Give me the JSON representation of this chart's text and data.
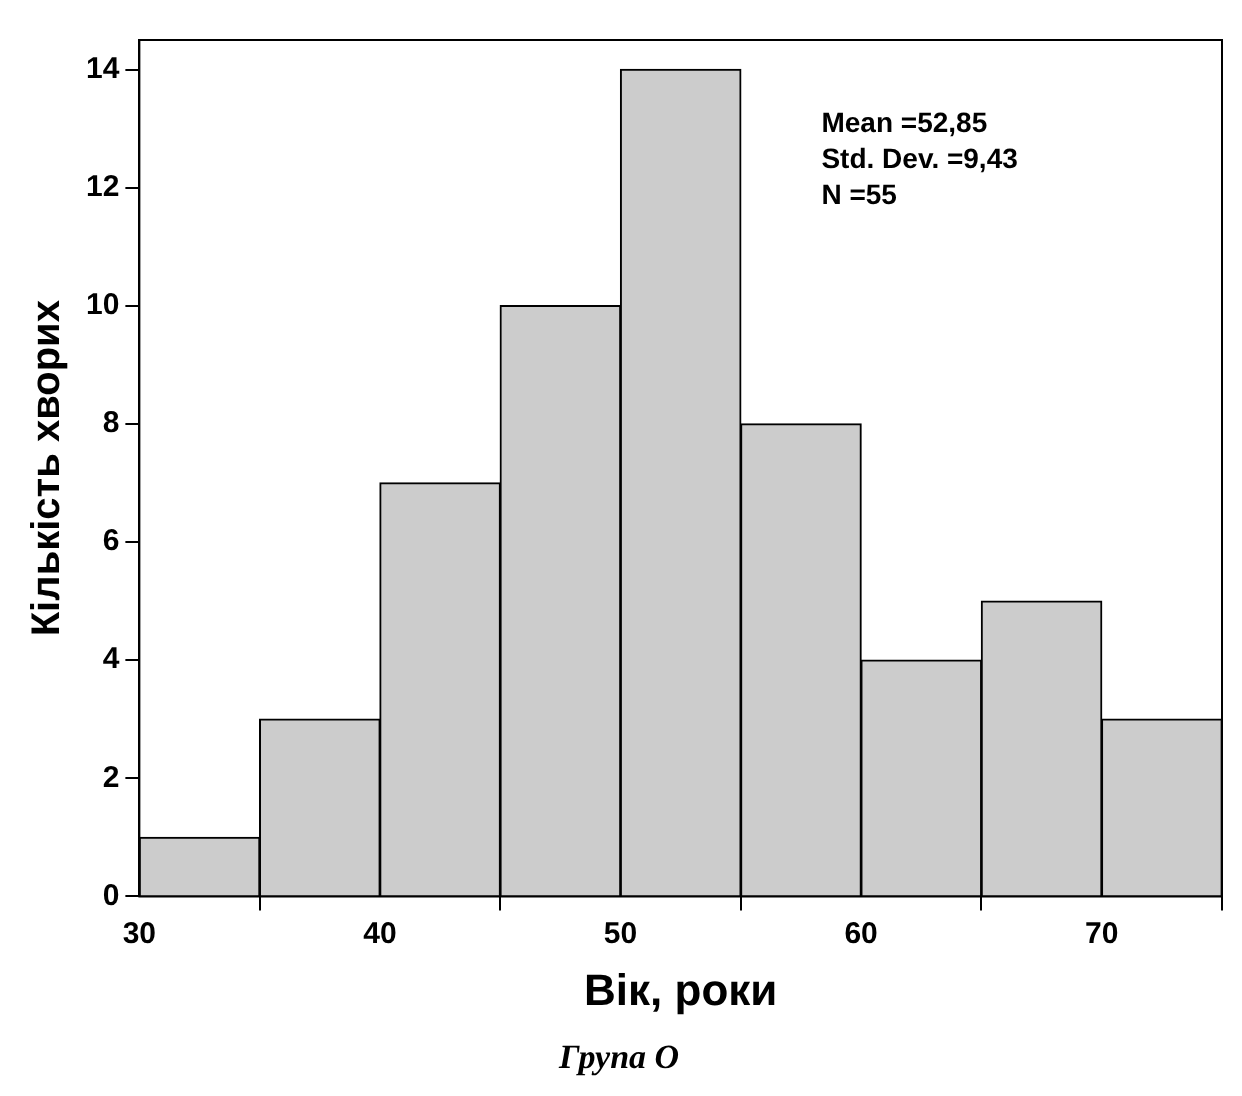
{
  "chart_data": {
    "type": "histogram",
    "title": "Група О",
    "xlabel": "Вік, роки",
    "ylabel": "Кількість хворих",
    "bins": [
      30,
      35,
      40,
      45,
      50,
      55,
      60,
      65,
      70,
      75
    ],
    "values": [
      1,
      3,
      7,
      10,
      14,
      8,
      4,
      5,
      3
    ],
    "color": "#cccccc",
    "xlim": [
      30,
      75
    ],
    "xticks": [
      30,
      40,
      50,
      60,
      70
    ],
    "ylim": [
      0,
      14.5
    ],
    "yticks": [
      0,
      2,
      4,
      6,
      8,
      10,
      12,
      14
    ],
    "annotations": [
      "Mean =52,85",
      "Std. Dev. =9,43",
      "N =55"
    ],
    "grid": false,
    "legend": false
  }
}
